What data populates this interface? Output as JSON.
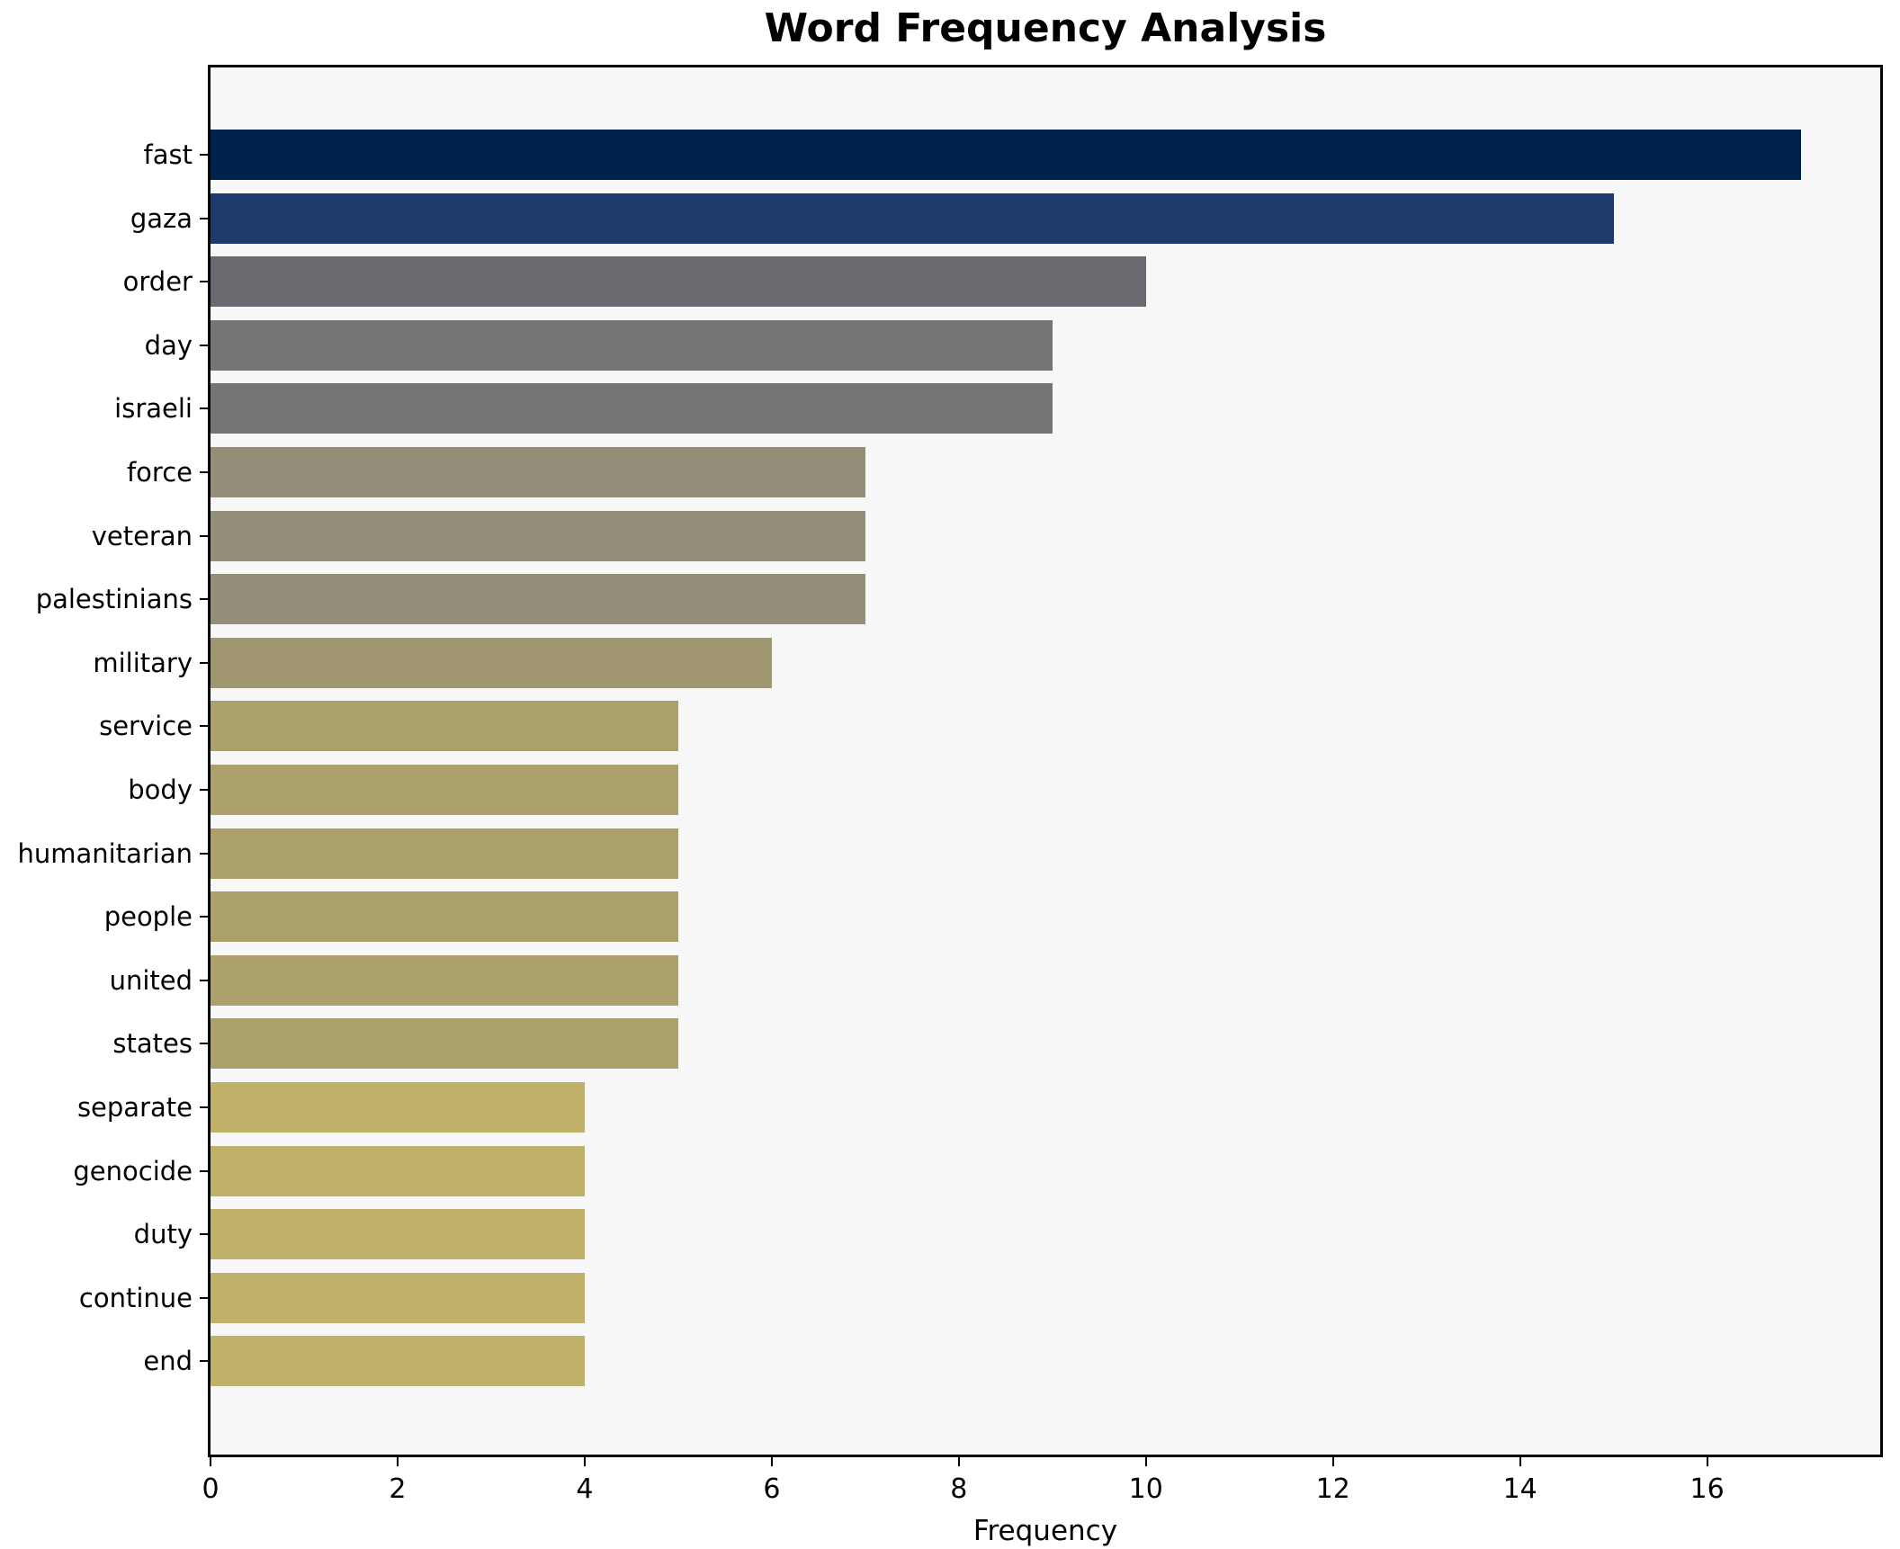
{
  "chart_data": {
    "type": "bar",
    "orientation": "horizontal",
    "title": "Word Frequency Analysis",
    "xlabel": "Frequency",
    "ylabel": "",
    "categories": [
      "fast",
      "gaza",
      "order",
      "day",
      "israeli",
      "force",
      "veteran",
      "palestinians",
      "military",
      "service",
      "body",
      "humanitarian",
      "people",
      "united",
      "states",
      "separate",
      "genocide",
      "duty",
      "continue",
      "end"
    ],
    "values": [
      17,
      15,
      10,
      9,
      9,
      7,
      7,
      7,
      6,
      5,
      5,
      5,
      5,
      5,
      5,
      4,
      4,
      4,
      4,
      4
    ],
    "bar_colors": [
      "#00224e",
      "#1c3a6c",
      "#696a70",
      "#747576",
      "#747576",
      "#948d78",
      "#948d78",
      "#948d78",
      "#a09770",
      "#aca06b",
      "#aca06b",
      "#aca06b",
      "#aca06b",
      "#aca06b",
      "#aca06b",
      "#bfb169",
      "#bfb169",
      "#bfb169",
      "#bfb169",
      "#bfb169"
    ],
    "xlim": [
      0,
      17.85
    ],
    "xticks": [
      0,
      2,
      4,
      6,
      8,
      10,
      12,
      14,
      16
    ],
    "grid": false,
    "legend": null,
    "colormap": "cividis",
    "plot_bg": "#f7f7f8",
    "figure_bg": "#ffffff",
    "spine_color": "#000000"
  }
}
